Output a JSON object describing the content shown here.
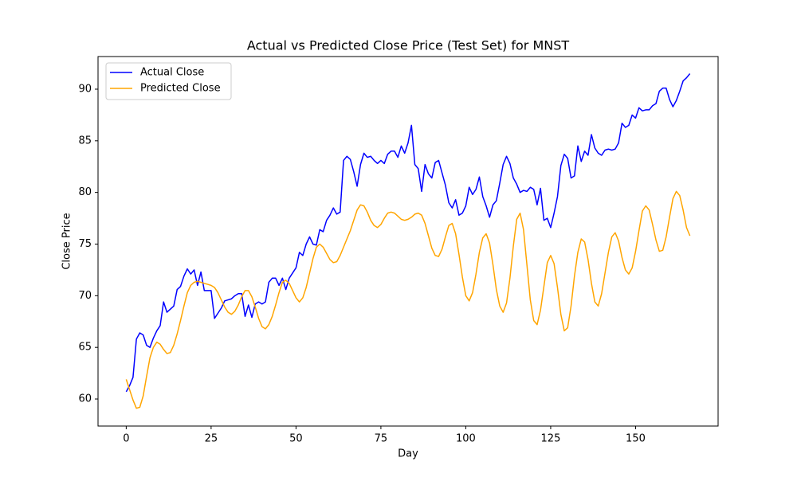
{
  "chart_data": {
    "type": "line",
    "title": "Actual vs Predicted Close Price (Test Set) for MNST",
    "xlabel": "Day",
    "ylabel": "Close Price",
    "x": [
      0,
      1,
      2,
      3,
      4,
      5,
      6,
      7,
      8,
      9,
      10,
      11,
      12,
      13,
      14,
      15,
      16,
      17,
      18,
      19,
      20,
      21,
      22,
      23,
      24,
      25,
      26,
      27,
      28,
      29,
      30,
      31,
      32,
      33,
      34,
      35,
      36,
      37,
      38,
      39,
      40,
      41,
      42,
      43,
      44,
      45,
      46,
      47,
      48,
      49,
      50,
      51,
      52,
      53,
      54,
      55,
      56,
      57,
      58,
      59,
      60,
      61,
      62,
      63,
      64,
      65,
      66,
      67,
      68,
      69,
      70,
      71,
      72,
      73,
      74,
      75,
      76,
      77,
      78,
      79,
      80,
      81,
      82,
      83,
      84,
      85,
      86,
      87,
      88,
      89,
      90,
      91,
      92,
      93,
      94,
      95,
      96,
      97,
      98,
      99,
      100,
      101,
      102,
      103,
      104,
      105,
      106,
      107,
      108,
      109,
      110,
      111,
      112,
      113,
      114,
      115,
      116,
      117,
      118,
      119,
      120,
      121,
      122,
      123,
      124,
      125,
      126,
      127,
      128,
      129,
      130,
      131,
      132,
      133,
      134,
      135,
      136,
      137,
      138,
      139,
      140,
      141,
      142,
      143,
      144,
      145,
      146,
      147,
      148,
      149,
      150,
      151,
      152,
      153,
      154,
      155,
      156,
      157,
      158,
      159,
      160,
      161,
      162,
      163,
      164,
      165,
      166
    ],
    "series": [
      {
        "name": "Actual Close",
        "color": "#0000ff",
        "values": [
          60.7,
          61.3,
          62.1,
          65.8,
          66.4,
          66.2,
          65.2,
          65.0,
          65.9,
          66.6,
          67.1,
          69.4,
          68.4,
          68.7,
          69.0,
          70.6,
          70.9,
          71.9,
          72.6,
          72.1,
          72.5,
          71.0,
          72.3,
          70.5,
          70.5,
          70.5,
          67.8,
          68.3,
          68.8,
          69.5,
          69.6,
          69.7,
          70.0,
          70.2,
          70.2,
          68.0,
          69.1,
          67.9,
          69.2,
          69.4,
          69.2,
          69.4,
          71.3,
          71.7,
          71.7,
          71.0,
          71.7,
          70.6,
          71.7,
          72.2,
          72.7,
          74.2,
          73.9,
          75.0,
          75.7,
          75.0,
          74.9,
          76.4,
          76.2,
          77.3,
          77.8,
          78.5,
          77.9,
          78.1,
          83.1,
          83.5,
          83.2,
          82.0,
          80.6,
          82.7,
          83.8,
          83.4,
          83.5,
          83.1,
          82.8,
          83.1,
          82.8,
          83.7,
          84.0,
          84.0,
          83.4,
          84.5,
          83.8,
          84.8,
          86.5,
          82.7,
          82.3,
          80.1,
          82.7,
          81.8,
          81.4,
          82.9,
          83.1,
          81.9,
          80.7,
          79.0,
          78.5,
          79.3,
          77.8,
          78.0,
          78.7,
          80.5,
          79.8,
          80.3,
          81.5,
          79.6,
          78.7,
          77.6,
          78.8,
          79.2,
          80.9,
          82.7,
          83.5,
          82.8,
          81.4,
          80.8,
          80.0,
          80.2,
          80.1,
          80.5,
          80.3,
          78.8,
          80.4,
          77.3,
          77.5,
          76.6,
          78.0,
          79.6,
          82.6,
          83.7,
          83.3,
          81.4,
          81.6,
          84.5,
          83.0,
          84.0,
          83.6,
          85.6,
          84.3,
          83.8,
          83.6,
          84.1,
          84.2,
          84.1,
          84.2,
          84.8,
          86.7,
          86.3,
          86.5,
          87.5,
          87.2,
          88.2,
          87.9,
          88.0,
          88.0,
          88.4,
          88.6,
          89.8,
          90.1,
          90.1,
          89.0,
          88.3,
          88.9,
          89.8,
          90.8,
          91.1,
          91.5
        ]
      },
      {
        "name": "Predicted Close",
        "color": "#ffa500",
        "values": [
          61.9,
          60.9,
          59.9,
          59.1,
          59.2,
          60.3,
          62.2,
          64.0,
          65.0,
          65.5,
          65.3,
          64.8,
          64.4,
          64.5,
          65.2,
          66.3,
          67.6,
          69.0,
          70.3,
          71.0,
          71.3,
          71.4,
          71.3,
          71.2,
          71.1,
          71.0,
          70.8,
          70.3,
          69.6,
          68.9,
          68.4,
          68.2,
          68.5,
          69.1,
          69.9,
          70.5,
          70.5,
          69.9,
          68.9,
          67.8,
          67.0,
          66.8,
          67.2,
          68.0,
          69.1,
          70.3,
          71.3,
          71.5,
          71.2,
          70.5,
          69.8,
          69.4,
          69.8,
          70.8,
          72.2,
          73.6,
          74.7,
          75.0,
          74.7,
          74.1,
          73.5,
          73.2,
          73.3,
          73.9,
          74.7,
          75.5,
          76.3,
          77.3,
          78.3,
          78.8,
          78.7,
          78.1,
          77.3,
          76.8,
          76.6,
          76.9,
          77.5,
          78.0,
          78.1,
          78.0,
          77.7,
          77.4,
          77.3,
          77.4,
          77.6,
          77.9,
          78.0,
          77.8,
          77.0,
          75.8,
          74.6,
          73.9,
          73.8,
          74.5,
          75.7,
          76.8,
          77.0,
          76.0,
          74.0,
          71.8,
          70.0,
          69.5,
          70.3,
          72.1,
          74.2,
          75.6,
          76.0,
          75.1,
          73.0,
          70.6,
          69.0,
          68.4,
          69.3,
          71.7,
          74.8,
          77.4,
          78.0,
          76.4,
          73.0,
          69.6,
          67.6,
          67.2,
          68.6,
          70.9,
          73.2,
          73.9,
          73.1,
          70.8,
          68.2,
          66.6,
          66.9,
          69.0,
          71.9,
          74.2,
          75.5,
          75.2,
          73.5,
          71.2,
          69.4,
          69.0,
          70.2,
          72.2,
          74.2,
          75.7,
          76.1,
          75.3,
          73.7,
          72.5,
          72.1,
          72.7,
          74.3,
          76.3,
          78.2,
          78.7,
          78.3,
          76.9,
          75.4,
          74.3,
          74.4,
          75.7,
          77.6,
          79.4,
          80.1,
          79.7,
          78.3,
          76.6,
          75.8
        ]
      }
    ],
    "xlim": [
      -8.3,
      174.3
    ],
    "xticks": [
      0,
      25,
      50,
      75,
      100,
      125,
      150
    ],
    "ylim": [
      57.38,
      93.16
    ],
    "yticks": [
      60,
      65,
      70,
      75,
      80,
      85,
      90
    ],
    "grid": false,
    "legend": "upper left"
  }
}
